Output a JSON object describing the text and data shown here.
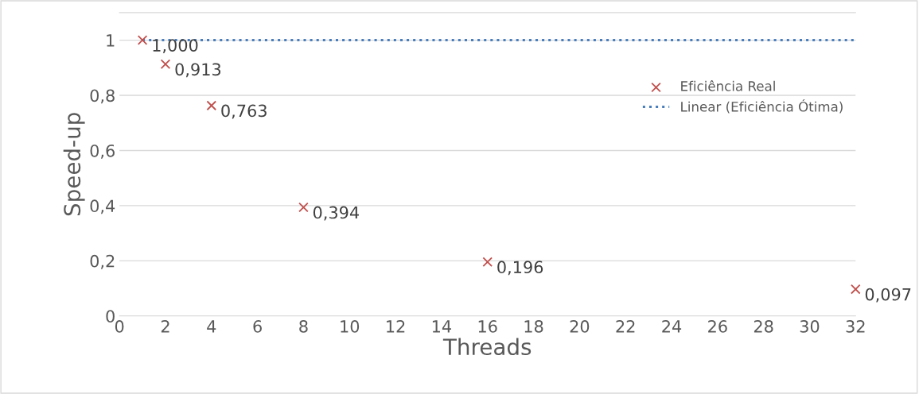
{
  "chart_data": {
    "type": "scatter",
    "xlabel": "Threads",
    "ylabel": "Speed-up",
    "series": [
      {
        "name": "Eficiência Real",
        "color": "#c0504d",
        "marker": "cross",
        "x": [
          1,
          2,
          4,
          8,
          16,
          32
        ],
        "values": [
          1,
          0.913,
          0.763,
          0.394,
          0.196,
          0.097
        ],
        "value_labels": [
          "1,000",
          "0,913",
          "0,763",
          "0,394",
          "0,196",
          "0,097"
        ]
      },
      {
        "name": "Linear (Eficiência Ótima)",
        "type": "line",
        "color": "#4a7ebb",
        "line_style": "dotted",
        "marker": "none",
        "x": [
          1,
          32
        ],
        "values": [
          1,
          1
        ]
      }
    ],
    "xlim": [
      0,
      32
    ],
    "xticks": [
      0,
      2,
      4,
      6,
      8,
      10,
      12,
      14,
      16,
      18,
      20,
      22,
      24,
      26,
      28,
      30,
      32
    ],
    "ylim": [
      0,
      1.1
    ],
    "yticks": [
      0,
      {
        "value": 0.2,
        "label": "0,2"
      },
      {
        "value": 0.4,
        "label": "0,4"
      },
      {
        "value": 0.6,
        "label": "0,6"
      },
      {
        "value": 0.8,
        "label": "0,8"
      },
      1
    ],
    "grid": "y",
    "legend": "right"
  }
}
